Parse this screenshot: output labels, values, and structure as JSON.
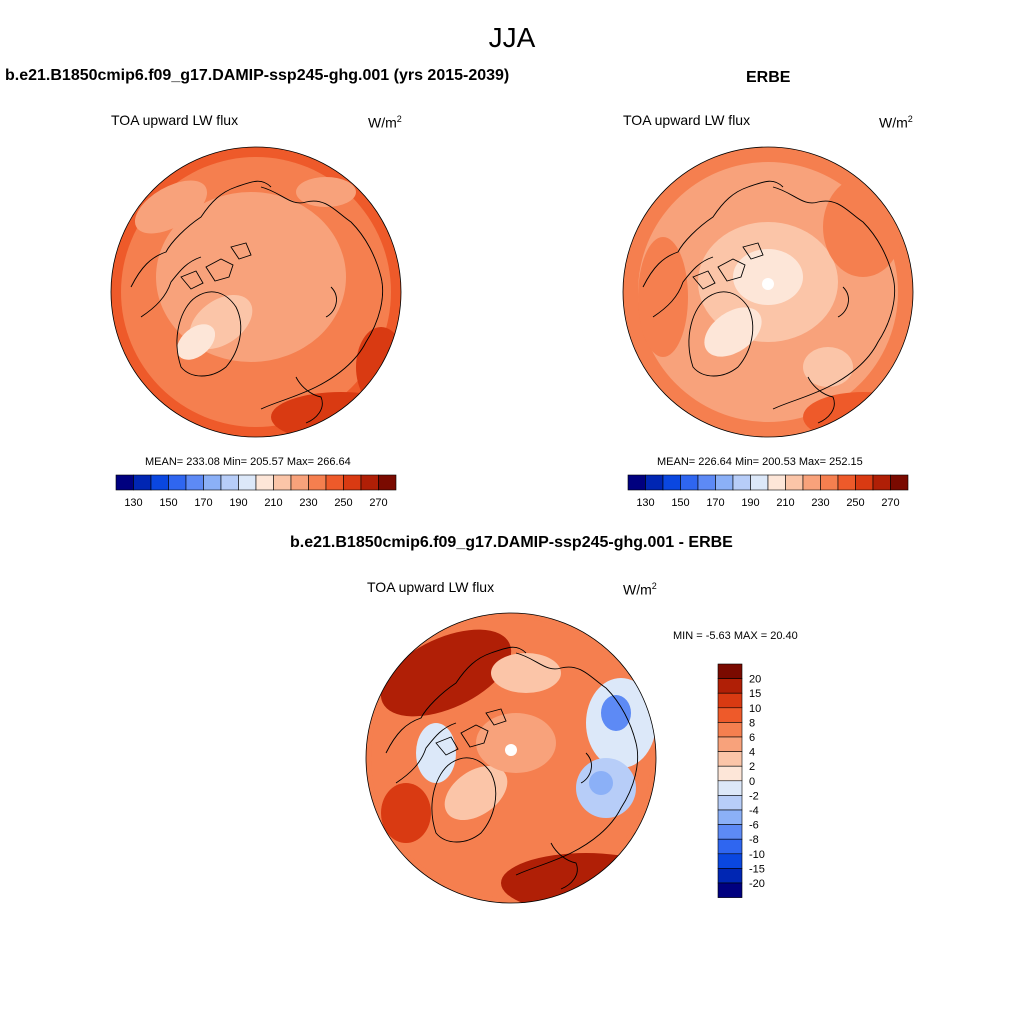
{
  "figure": {
    "title": "JJA"
  },
  "panels": {
    "model": {
      "title": "b.e21.B1850cmip6.f09_g17.DAMIP-ssp245-ghg.001 (yrs 2015-2039)",
      "variable": "TOA upward LW flux",
      "units": "W/m",
      "units_sup": "2",
      "stats": "MEAN= 233.08  Min= 205.57  Max= 266.64",
      "colorbar_ticks": [
        "130",
        "150",
        "170",
        "190",
        "210",
        "230",
        "250",
        "270"
      ]
    },
    "obs": {
      "title": "ERBE",
      "variable": "TOA upward LW flux",
      "units": "W/m",
      "units_sup": "2",
      "stats": "MEAN= 226.64  Min= 200.53  Max= 252.15",
      "colorbar_ticks": [
        "130",
        "150",
        "170",
        "190",
        "210",
        "230",
        "250",
        "270"
      ]
    },
    "diff": {
      "title": "b.e21.B1850cmip6.f09_g17.DAMIP-ssp245-ghg.001 - ERBE",
      "variable": "TOA upward LW flux",
      "units": "W/m",
      "units_sup": "2",
      "stats": "MIN =  -5.63 MAX =  20.40",
      "colorbar_ticks": [
        "20",
        "15",
        "10",
        "8",
        "6",
        "4",
        "2",
        "0",
        "-2",
        "-4",
        "-6",
        "-8",
        "-10",
        "-15",
        "-20"
      ]
    }
  },
  "colors": {
    "flux_scale": [
      "#00007f",
      "#0026b3",
      "#0a47e0",
      "#2f66f0",
      "#5d8af5",
      "#8bb0f7",
      "#b7cdf8",
      "#dce8f9",
      "#fde6d8",
      "#fbc5a8",
      "#f8a27b",
      "#f57f4f",
      "#ee5a2a",
      "#d93a12",
      "#b01f06",
      "#7a0a00"
    ],
    "diff_scale_top_to_bottom": [
      "#7a0a00",
      "#b01f06",
      "#d93a12",
      "#ee5a2a",
      "#f57f4f",
      "#f8a27b",
      "#fbc5a8",
      "#fde6d8",
      "#dce8f9",
      "#b7cdf8",
      "#8bb0f7",
      "#5d8af5",
      "#2f66f0",
      "#0a47e0",
      "#0026b3",
      "#00007f"
    ],
    "coast": "#000000"
  }
}
